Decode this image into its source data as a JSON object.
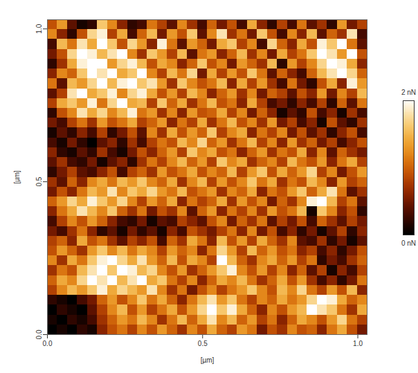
{
  "chart_data": {
    "type": "heatmap",
    "x_label": "[µm]",
    "y_label": "[µm]",
    "xlim": [
      0,
      1.03
    ],
    "ylim": [
      0,
      1.03
    ],
    "xticks": [
      {
        "value": 0,
        "label": "0.0"
      },
      {
        "value": 0.5,
        "label": "0.5"
      },
      {
        "value": 1,
        "label": "1.0"
      }
    ],
    "yticks": [
      {
        "value": 0,
        "label": "0.0"
      },
      {
        "value": 0.5,
        "label": "0.5"
      },
      {
        "value": 1,
        "label": "1.0"
      }
    ],
    "colorbar": {
      "range": [
        0,
        2
      ],
      "ticks": [
        {
          "value": 0,
          "label": "0 nN"
        },
        {
          "value": 2,
          "label": "2 nN"
        }
      ]
    },
    "cells": [
      [
        0.9,
        1.3,
        0.4,
        0.1,
        0.2,
        1.6,
        1.2,
        0.6,
        0.2,
        0.3,
        1.1,
        0.8,
        0.4,
        1.2,
        0.7,
        0.3,
        1.0,
        0.5,
        0.9,
        0.3,
        1.4,
        0.6,
        0.2,
        0.8,
        0.3,
        1.1,
        0.4,
        0.7,
        0.2,
        1.3,
        0.5,
        0.8
      ],
      [
        1.2,
        0.6,
        0.2,
        0.9,
        1.7,
        1.9,
        0.8,
        1.4,
        0.3,
        1.0,
        1.5,
        0.5,
        1.3,
        0.9,
        1.6,
        0.4,
        1.2,
        1.8,
        0.7,
        1.1,
        0.5,
        1.6,
        0.9,
        0.3,
        1.2,
        0.6,
        1.5,
        0.4,
        1.0,
        0.7,
        1.8,
        0.3
      ],
      [
        0.3,
        1.5,
        1.1,
        1.8,
        1.4,
        2.0,
        1.6,
        0.9,
        1.7,
        1.3,
        0.6,
        1.9,
        1.1,
        0.4,
        1.3,
        1.0,
        0.5,
        1.4,
        1.6,
        0.8,
        1.2,
        0.3,
        1.7,
        1.0,
        0.6,
        1.4,
        0.9,
        1.9,
        1.6,
        2.0,
        1.1,
        0.4
      ],
      [
        0.5,
        0.9,
        1.7,
        2.0,
        1.9,
        1.5,
        1.8,
        2.0,
        1.2,
        0.7,
        1.6,
        1.3,
        0.8,
        1.5,
        0.4,
        1.1,
        1.3,
        0.6,
        1.0,
        1.5,
        0.7,
        1.2,
        0.5,
        1.4,
        0.8,
        1.1,
        1.6,
        2.0,
        1.8,
        1.3,
        2.0,
        0.9
      ],
      [
        0.2,
        0.7,
        1.4,
        1.9,
        2.0,
        2.0,
        1.3,
        1.7,
        1.9,
        1.5,
        0.9,
        1.4,
        1.2,
        0.6,
        1.0,
        1.6,
        0.9,
        1.2,
        0.5,
        1.3,
        1.0,
        0.7,
        1.5,
        0.2,
        1.3,
        0.8,
        1.2,
        1.7,
        2.0,
        1.9,
        1.4,
        0.6
      ],
      [
        0.6,
        1.2,
        1.0,
        1.6,
        2.0,
        1.8,
        2.0,
        1.4,
        1.6,
        2.0,
        1.2,
        0.8,
        1.5,
        1.1,
        1.7,
        0.5,
        1.4,
        0.8,
        1.3,
        0.9,
        1.6,
        1.1,
        0.4,
        1.0,
        0.6,
        0.3,
        1.0,
        1.5,
        1.8,
        2.0,
        1.7,
        1.0
      ],
      [
        1.1,
        0.4,
        1.5,
        1.3,
        1.7,
        2.0,
        1.5,
        1.9,
        2.0,
        1.6,
        1.8,
        1.3,
        0.7,
        1.6,
        1.2,
        0.9,
        1.1,
        1.5,
        0.6,
        1.4,
        0.8,
        1.3,
        0.7,
        0.3,
        1.1,
        0.5,
        0.2,
        0.9,
        1.4,
        0.6,
        1.9,
        1.3
      ],
      [
        0.4,
        0.8,
        1.8,
        2.0,
        1.4,
        1.6,
        1.9,
        1.2,
        1.7,
        1.9,
        1.4,
        0.9,
        1.3,
        0.8,
        1.5,
        1.2,
        0.6,
        1.0,
        1.3,
        0.7,
        1.2,
        0.5,
        1.0,
        0.8,
        0.4,
        0.9,
        0.6,
        1.3,
        0.5,
        1.2,
        0.8,
        1.5
      ],
      [
        0.8,
        1.4,
        1.6,
        1.3,
        1.9,
        1.1,
        1.7,
        2.0,
        1.4,
        1.5,
        0.8,
        1.6,
        1.0,
        1.4,
        0.7,
        1.1,
        1.5,
        0.9,
        1.1,
        0.6,
        1.4,
        0.8,
        0.3,
        0.5,
        0.2,
        0.6,
        0.3,
        0.8,
        0.2,
        1.0,
        0.4,
        1.1
      ],
      [
        0.2,
        0.9,
        1.2,
        1.8,
        1.4,
        1.7,
        1.2,
        1.5,
        1.9,
        1.1,
        1.3,
        0.7,
        1.2,
        0.6,
        1.3,
        0.9,
        1.0,
        1.4,
        0.8,
        1.2,
        0.5,
        1.0,
        0.6,
        0.1,
        0.4,
        0.2,
        0.9,
        0.3,
        0.6,
        0.1,
        0.7,
        0.3
      ],
      [
        0.5,
        0.3,
        0.8,
        1.1,
        0.7,
        1.3,
        0.9,
        1.1,
        1.4,
        0.8,
        1.0,
        1.3,
        0.6,
        1.1,
        0.8,
        1.4,
        0.7,
        1.1,
        1.5,
        0.9,
        1.2,
        0.7,
        1.3,
        0.5,
        0.8,
        0.3,
        0.6,
        0.1,
        0.9,
        0.4,
        0.2,
        0.7
      ],
      [
        0.1,
        0.4,
        0.2,
        0.6,
        0.3,
        0.8,
        0.2,
        0.5,
        0.9,
        0.4,
        1.2,
        0.7,
        1.4,
        0.9,
        1.3,
        1.0,
        1.6,
        0.8,
        1.2,
        1.4,
        0.6,
        1.1,
        0.8,
        1.2,
        0.5,
        0.9,
        0.4,
        0.7,
        0.2,
        0.6,
        0.9,
        0.3
      ],
      [
        0.3,
        0.1,
        0.5,
        0.2,
        0.0,
        0.4,
        0.6,
        0.2,
        0.7,
        0.3,
        0.8,
        1.1,
        0.9,
        1.5,
        1.2,
        1.7,
        1.0,
        1.3,
        0.7,
        1.1,
        1.5,
        0.8,
        1.2,
        0.6,
        1.3,
        0.7,
        1.0,
        0.5,
        0.8,
        0.3,
        0.6,
        0.9
      ],
      [
        0.6,
        0.2,
        0.1,
        0.4,
        0.2,
        0.7,
        0.3,
        0.1,
        0.5,
        0.9,
        0.6,
        1.0,
        1.3,
        0.8,
        1.6,
        1.2,
        1.4,
        0.9,
        1.1,
        0.6,
        1.0,
        1.3,
        0.7,
        1.1,
        0.9,
        1.4,
        0.6,
        1.2,
        0.4,
        1.0,
        0.7,
        0.5
      ],
      [
        0.4,
        0.7,
        0.3,
        0.2,
        0.5,
        0.1,
        0.4,
        0.6,
        0.2,
        0.7,
        1.1,
        0.8,
        1.2,
        1.5,
        1.0,
        1.3,
        0.8,
        1.6,
        1.2,
        1.4,
        0.7,
        1.0,
        1.2,
        0.8,
        1.5,
        1.1,
        0.9,
        1.3,
        0.6,
        1.1,
        1.4,
        0.8
      ],
      [
        0.2,
        0.5,
        0.8,
        0.4,
        0.3,
        0.6,
        0.9,
        0.3,
        0.8,
        1.0,
        0.7,
        1.3,
        0.9,
        1.1,
        1.4,
        0.9,
        1.2,
        1.0,
        1.5,
        0.8,
        1.3,
        1.6,
        0.9,
        1.4,
        1.0,
        1.3,
        1.7,
        0.8,
        1.2,
        0.5,
        0.9,
        1.3
      ],
      [
        0.7,
        0.4,
        1.0,
        0.6,
        1.2,
        1.4,
        1.1,
        1.5,
        1.3,
        1.6,
        1.2,
        1.0,
        1.4,
        0.7,
        1.2,
        1.5,
        0.8,
        1.3,
        0.9,
        1.2,
        1.6,
        1.1,
        1.4,
        0.7,
        1.1,
        0.9,
        1.5,
        1.2,
        0.6,
        1.3,
        0.8,
        1.0
      ],
      [
        0.5,
        0.9,
        0.6,
        1.1,
        1.5,
        1.3,
        1.8,
        1.2,
        1.6,
        1.4,
        1.7,
        1.3,
        1.1,
        1.5,
        0.9,
        1.1,
        1.3,
        0.7,
        1.2,
        1.0,
        1.4,
        0.6,
        1.1,
        0.9,
        1.3,
        1.6,
        1.0,
        1.4,
        1.8,
        1.1,
        0.4,
        0.7
      ],
      [
        1.0,
        1.3,
        1.7,
        1.4,
        1.9,
        1.6,
        1.3,
        1.7,
        1.2,
        0.8,
        1.3,
        1.0,
        1.4,
        0.6,
        1.1,
        0.8,
        1.0,
        1.4,
        0.7,
        1.3,
        0.9,
        1.2,
        0.5,
        1.0,
        0.7,
        1.2,
        1.9,
        2.0,
        1.5,
        0.8,
        1.1,
        0.4
      ],
      [
        0.6,
        1.1,
        1.4,
        1.8,
        1.5,
        1.2,
        1.6,
        1.0,
        0.7,
        1.1,
        0.5,
        0.9,
        0.7,
        1.2,
        0.4,
        1.0,
        1.3,
        0.6,
        1.1,
        0.8,
        1.2,
        0.7,
        1.3,
        0.9,
        1.1,
        1.5,
        0.1,
        1.6,
        1.2,
        0.6,
        0.9,
        0.2
      ],
      [
        0.3,
        0.8,
        1.2,
        0.9,
        1.3,
        1.0,
        0.6,
        0.3,
        0.2,
        0.5,
        0.1,
        0.4,
        0.3,
        0.8,
        0.6,
        0.4,
        0.9,
        1.2,
        0.5,
        1.0,
        0.7,
        1.1,
        0.4,
        0.8,
        0.5,
        0.9,
        0.3,
        1.0,
        0.7,
        0.4,
        0.8,
        0.5
      ],
      [
        0.5,
        0.3,
        0.7,
        1.1,
        0.6,
        0.2,
        0.4,
        0.1,
        0.5,
        0.2,
        0.4,
        0.1,
        0.6,
        0.3,
        0.9,
        0.7,
        0.5,
        0.8,
        1.1,
        0.6,
        1.2,
        0.5,
        0.9,
        0.3,
        0.6,
        0.2,
        0.5,
        0.1,
        0.4,
        0.8,
        0.2,
        0.6
      ],
      [
        0.8,
        1.0,
        0.6,
        1.4,
        0.9,
        1.1,
        0.7,
        0.4,
        0.8,
        0.6,
        0.9,
        0.3,
        1.0,
        0.7,
        1.4,
        1.1,
        0.6,
        1.5,
        0.9,
        1.3,
        0.8,
        1.4,
        1.0,
        0.7,
        1.2,
        0.4,
        0.3,
        0.7,
        0.2,
        0.5,
        0.1,
        0.4
      ],
      [
        0.9,
        1.3,
        1.0,
        0.7,
        1.3,
        1.6,
        1.2,
        1.5,
        1.1,
        1.4,
        1.2,
        0.8,
        1.3,
        1.0,
        1.2,
        0.6,
        1.1,
        1.7,
        1.3,
        0.8,
        1.5,
        1.0,
        1.3,
        0.9,
        1.1,
        0.6,
        0.8,
        0.3,
        0.6,
        0.2,
        0.5,
        0.9
      ],
      [
        1.2,
        0.7,
        1.4,
        1.1,
        1.6,
        1.9,
        2.0,
        1.7,
        1.4,
        1.8,
        1.3,
        1.0,
        1.5,
        0.9,
        1.4,
        1.2,
        0.8,
        2.0,
        1.5,
        1.0,
        0.7,
        1.2,
        1.4,
        1.0,
        1.3,
        0.8,
        1.1,
        0.2,
        0.5,
        0.3,
        0.7,
        1.0
      ],
      [
        0.7,
        1.1,
        0.9,
        1.5,
        1.8,
        2.0,
        1.6,
        2.0,
        1.9,
        1.5,
        1.7,
        1.2,
        0.9,
        1.3,
        0.7,
        1.0,
        1.3,
        1.6,
        1.9,
        1.2,
        0.9,
        1.3,
        0.8,
        1.2,
        0.6,
        1.0,
        0.4,
        0.8,
        0.1,
        0.6,
        0.3,
        0.8
      ],
      [
        1.0,
        1.4,
        1.2,
        1.7,
        2.0,
        1.8,
        2.0,
        1.5,
        1.8,
        2.0,
        1.4,
        1.6,
        1.1,
        0.8,
        1.2,
        0.6,
        1.0,
        1.4,
        1.2,
        1.5,
        1.1,
        0.7,
        1.0,
        1.4,
        0.9,
        1.3,
        0.7,
        0.3,
        0.6,
        0.2,
        0.5,
        1.1
      ],
      [
        0.8,
        1.2,
        1.5,
        1.3,
        1.6,
        1.9,
        1.4,
        1.7,
        1.5,
        1.3,
        1.8,
        1.2,
        0.7,
        1.1,
        0.5,
        0.9,
        1.2,
        0.8,
        1.1,
        1.3,
        1.6,
        1.2,
        0.9,
        1.5,
        1.2,
        1.7,
        1.1,
        0.8,
        1.3,
        0.9,
        1.5,
        0.6
      ],
      [
        0.2,
        0.1,
        0.0,
        0.3,
        0.5,
        1.0,
        1.3,
        0.9,
        1.2,
        1.6,
        1.1,
        1.4,
        1.0,
        0.6,
        1.1,
        1.5,
        1.8,
        1.3,
        1.6,
        1.1,
        0.8,
        1.2,
        1.0,
        1.4,
        1.1,
        1.3,
        1.7,
        2.0,
        1.9,
        1.4,
        1.0,
        1.2
      ],
      [
        0.0,
        0.2,
        0.1,
        0.0,
        0.4,
        0.8,
        1.2,
        1.5,
        0.9,
        1.3,
        0.8,
        1.1,
        1.4,
        0.9,
        1.3,
        1.7,
        2.0,
        1.6,
        1.9,
        1.4,
        1.0,
        0.6,
        1.2,
        0.9,
        1.3,
        1.5,
        2.0,
        1.8,
        1.6,
        1.1,
        0.7,
        1.4
      ],
      [
        0.1,
        0.0,
        0.2,
        0.1,
        0.3,
        0.7,
        1.0,
        1.3,
        1.1,
        1.5,
        1.2,
        0.7,
        1.1,
        1.5,
        1.0,
        1.4,
        1.8,
        1.2,
        1.5,
        1.0,
        1.3,
        0.8,
        1.1,
        0.6,
        1.0,
        1.4,
        1.2,
        0.9,
        1.3,
        1.7,
        1.1,
        0.8
      ],
      [
        0.0,
        0.1,
        0.0,
        0.2,
        0.1,
        0.6,
        0.9,
        1.1,
        0.8,
        1.2,
        0.9,
        1.3,
        1.0,
        0.7,
        1.2,
        0.9,
        1.4,
        1.0,
        0.8,
        1.3,
        1.1,
        0.5,
        0.9,
        0.7,
        1.2,
        0.9,
        1.0,
        0.6,
        1.1,
        1.4,
        0.9,
        0.5
      ]
    ]
  }
}
